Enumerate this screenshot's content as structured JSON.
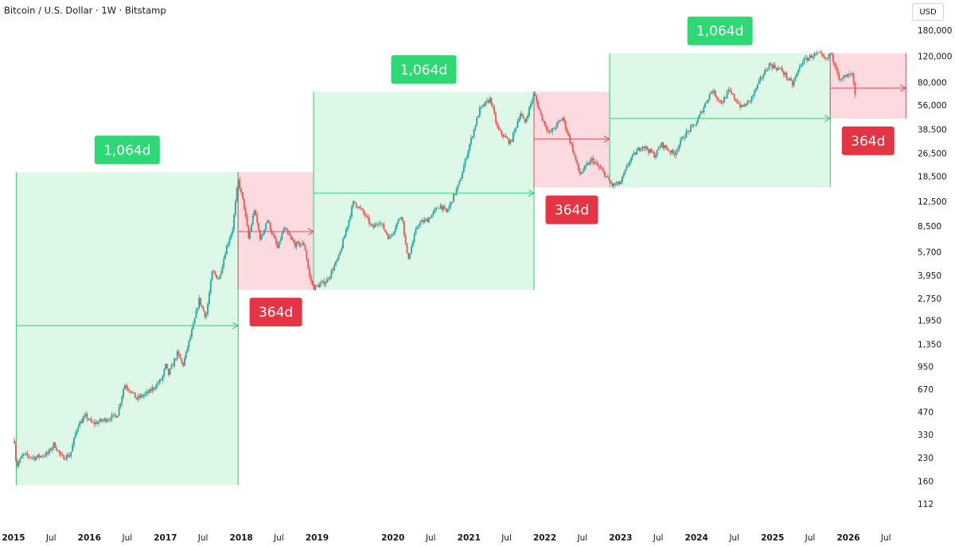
{
  "header": {
    "title": "Bitcoin / U.S. Dollar · 1W · Bitstamp",
    "currency": "USD"
  },
  "colors": {
    "up": "#26a69a",
    "down": "#ef5350",
    "green_zone": "#dcf8e6",
    "red_zone": "#fbd9dd",
    "green_line": "#37c873",
    "red_line": "#e34b57",
    "green_badge": "#2ed975",
    "red_badge": "#e53444"
  },
  "chart_data": {
    "type": "candlestick",
    "title": "Bitcoin / U.S. Dollar · 1W · Bitstamp",
    "y_scale": "log",
    "ylim": [
      100,
      200000
    ],
    "xlim": [
      "2015-01-01",
      "2026-12-01"
    ],
    "y_ticks": [
      180000,
      120000,
      80000,
      56000,
      38500,
      26500,
      18500,
      12500,
      8500,
      5700,
      3950,
      2750,
      1950,
      1350,
      950,
      670,
      470,
      330,
      230,
      160,
      112
    ],
    "y_tick_labels": [
      "180,000",
      "120,000",
      "80,000",
      "56,000",
      "38,500",
      "26,500",
      "18,500",
      "12,500",
      "8,500",
      "5,700",
      "3,950",
      "2,750",
      "1,950",
      "1,350",
      "950",
      "670",
      "470",
      "330",
      "230",
      "160",
      "112"
    ],
    "x_ticks": [
      {
        "label": "2015",
        "date": "2015-01-01",
        "bold": true
      },
      {
        "label": "Jul",
        "date": "2015-07-01",
        "bold": false
      },
      {
        "label": "2016",
        "date": "2016-01-01",
        "bold": true
      },
      {
        "label": "Jul",
        "date": "2016-07-01",
        "bold": false
      },
      {
        "label": "2017",
        "date": "2017-01-01",
        "bold": true
      },
      {
        "label": "Jul",
        "date": "2017-07-01",
        "bold": false
      },
      {
        "label": "2018",
        "date": "2018-01-01",
        "bold": true
      },
      {
        "label": "Jul",
        "date": "2018-07-01",
        "bold": false
      },
      {
        "label": "2019",
        "date": "2019-01-01",
        "bold": true
      },
      {
        "label": "2020",
        "date": "2020-01-01",
        "bold": true
      },
      {
        "label": "Jul",
        "date": "2020-07-01",
        "bold": false
      },
      {
        "label": "2021",
        "date": "2021-01-01",
        "bold": true
      },
      {
        "label": "Jul",
        "date": "2021-07-01",
        "bold": false
      },
      {
        "label": "2022",
        "date": "2022-01-01",
        "bold": true
      },
      {
        "label": "Jul",
        "date": "2022-07-01",
        "bold": false
      },
      {
        "label": "2023",
        "date": "2023-01-01",
        "bold": true
      },
      {
        "label": "Jul",
        "date": "2023-07-01",
        "bold": false
      },
      {
        "label": "2024",
        "date": "2024-01-01",
        "bold": true
      },
      {
        "label": "Jul",
        "date": "2024-07-01",
        "bold": false
      },
      {
        "label": "2025",
        "date": "2025-01-01",
        "bold": true
      },
      {
        "label": "Jul",
        "date": "2025-07-01",
        "bold": false
      },
      {
        "label": "2026",
        "date": "2026-01-01",
        "bold": true
      },
      {
        "label": "Jul",
        "date": "2026-07-01",
        "bold": false
      }
    ],
    "price_path": [
      [
        "2015-01-05",
        300
      ],
      [
        "2015-01-15",
        200
      ],
      [
        "2015-02-15",
        240
      ],
      [
        "2015-04-15",
        230
      ],
      [
        "2015-06-15",
        245
      ],
      [
        "2015-07-15",
        285
      ],
      [
        "2015-08-20",
        230
      ],
      [
        "2015-10-01",
        240
      ],
      [
        "2015-11-05",
        380
      ],
      [
        "2015-12-15",
        440
      ],
      [
        "2016-01-15",
        390
      ],
      [
        "2016-03-15",
        415
      ],
      [
        "2016-05-15",
        450
      ],
      [
        "2016-06-18",
        720
      ],
      [
        "2016-07-15",
        660
      ],
      [
        "2016-08-15",
        575
      ],
      [
        "2016-10-15",
        640
      ],
      [
        "2016-12-15",
        780
      ],
      [
        "2017-01-05",
        1000
      ],
      [
        "2017-01-12",
        820
      ],
      [
        "2017-03-01",
        1180
      ],
      [
        "2017-03-25",
        960
      ],
      [
        "2017-05-15",
        1800
      ],
      [
        "2017-06-12",
        2700
      ],
      [
        "2017-07-15",
        2050
      ],
      [
        "2017-08-15",
        4200
      ],
      [
        "2017-09-15",
        3700
      ],
      [
        "2017-10-20",
        6000
      ],
      [
        "2017-11-20",
        8200
      ],
      [
        "2017-12-17",
        17500
      ],
      [
        "2018-01-15",
        11500
      ],
      [
        "2018-02-05",
        7000
      ],
      [
        "2018-03-05",
        11000
      ],
      [
        "2018-04-05",
        6800
      ],
      [
        "2018-05-05",
        9500
      ],
      [
        "2018-06-25",
        6000
      ],
      [
        "2018-07-25",
        8200
      ],
      [
        "2018-09-15",
        6400
      ],
      [
        "2018-11-01",
        6400
      ],
      [
        "2018-11-25",
        3900
      ],
      [
        "2018-12-15",
        3250
      ],
      [
        "2019-02-15",
        3600
      ],
      [
        "2019-04-15",
        5200
      ],
      [
        "2019-06-26",
        12500
      ],
      [
        "2019-08-15",
        10300
      ],
      [
        "2019-09-25",
        8200
      ],
      [
        "2019-10-26",
        9300
      ],
      [
        "2019-12-15",
        7000
      ],
      [
        "2020-02-12",
        10300
      ],
      [
        "2020-03-12",
        5000
      ],
      [
        "2020-04-30",
        8800
      ],
      [
        "2020-06-15",
        9400
      ],
      [
        "2020-08-15",
        11800
      ],
      [
        "2020-09-15",
        10500
      ],
      [
        "2020-11-15",
        16500
      ],
      [
        "2020-12-31",
        29000
      ],
      [
        "2021-02-21",
        52000
      ],
      [
        "2021-04-14",
        62000
      ],
      [
        "2021-05-20",
        38000
      ],
      [
        "2021-07-20",
        31000
      ],
      [
        "2021-09-05",
        50000
      ],
      [
        "2021-09-25",
        42000
      ],
      [
        "2021-11-10",
        67000
      ],
      [
        "2021-12-15",
        47000
      ],
      [
        "2022-01-24",
        36000
      ],
      [
        "2022-03-28",
        46000
      ],
      [
        "2022-05-12",
        29000
      ],
      [
        "2022-06-18",
        19000
      ],
      [
        "2022-08-15",
        24000
      ],
      [
        "2022-10-15",
        19200
      ],
      [
        "2022-11-21",
        16000
      ],
      [
        "2022-12-31",
        16600
      ],
      [
        "2023-02-15",
        24000
      ],
      [
        "2023-04-15",
        30000
      ],
      [
        "2023-06-15",
        25500
      ],
      [
        "2023-07-15",
        30500
      ],
      [
        "2023-09-15",
        26000
      ],
      [
        "2023-10-30",
        34500
      ],
      [
        "2023-12-31",
        42500
      ],
      [
        "2024-03-14",
        71000
      ],
      [
        "2024-05-01",
        58000
      ],
      [
        "2024-06-05",
        70000
      ],
      [
        "2024-08-05",
        54000
      ],
      [
        "2024-09-15",
        60000
      ],
      [
        "2024-11-12",
        88000
      ],
      [
        "2024-12-17",
        106000
      ],
      [
        "2025-02-15",
        96000
      ],
      [
        "2025-04-07",
        77000
      ],
      [
        "2025-05-22",
        110000
      ],
      [
        "2025-07-14",
        122000
      ],
      [
        "2025-08-14",
        124000
      ],
      [
        "2025-09-15",
        112000
      ],
      [
        "2025-10-06",
        126000
      ],
      [
        "2025-11-05",
        101000
      ],
      [
        "2025-11-21",
        81000
      ],
      [
        "2025-12-15",
        87000
      ],
      [
        "2026-01-20",
        90000
      ],
      [
        "2026-02-05",
        60000
      ]
    ],
    "zones": [
      {
        "kind": "bull",
        "start": "2015-01-14",
        "end": "2017-12-17",
        "low": 150,
        "high": 19700,
        "arrow_price": 1800,
        "label": "1,064d"
      },
      {
        "kind": "bear",
        "start": "2017-12-17",
        "end": "2018-12-15",
        "low": 3150,
        "high": 19700,
        "arrow_price": 7800,
        "label": "364d"
      },
      {
        "kind": "bull",
        "start": "2018-12-15",
        "end": "2021-11-10",
        "low": 3150,
        "high": 69000,
        "arrow_price": 14200,
        "label": "1,064d"
      },
      {
        "kind": "bear",
        "start": "2021-11-10",
        "end": "2022-11-09",
        "low": 15500,
        "high": 69000,
        "arrow_price": 33000,
        "label": "364d"
      },
      {
        "kind": "bull",
        "start": "2022-11-09",
        "end": "2025-10-06",
        "low": 15500,
        "high": 126000,
        "arrow_price": 45500,
        "label": "1,064d"
      },
      {
        "kind": "bear",
        "start": "2025-10-06",
        "end": "2026-10-05",
        "low": 45500,
        "high": 126000,
        "arrow_price": 73000,
        "label": "364d"
      }
    ]
  }
}
